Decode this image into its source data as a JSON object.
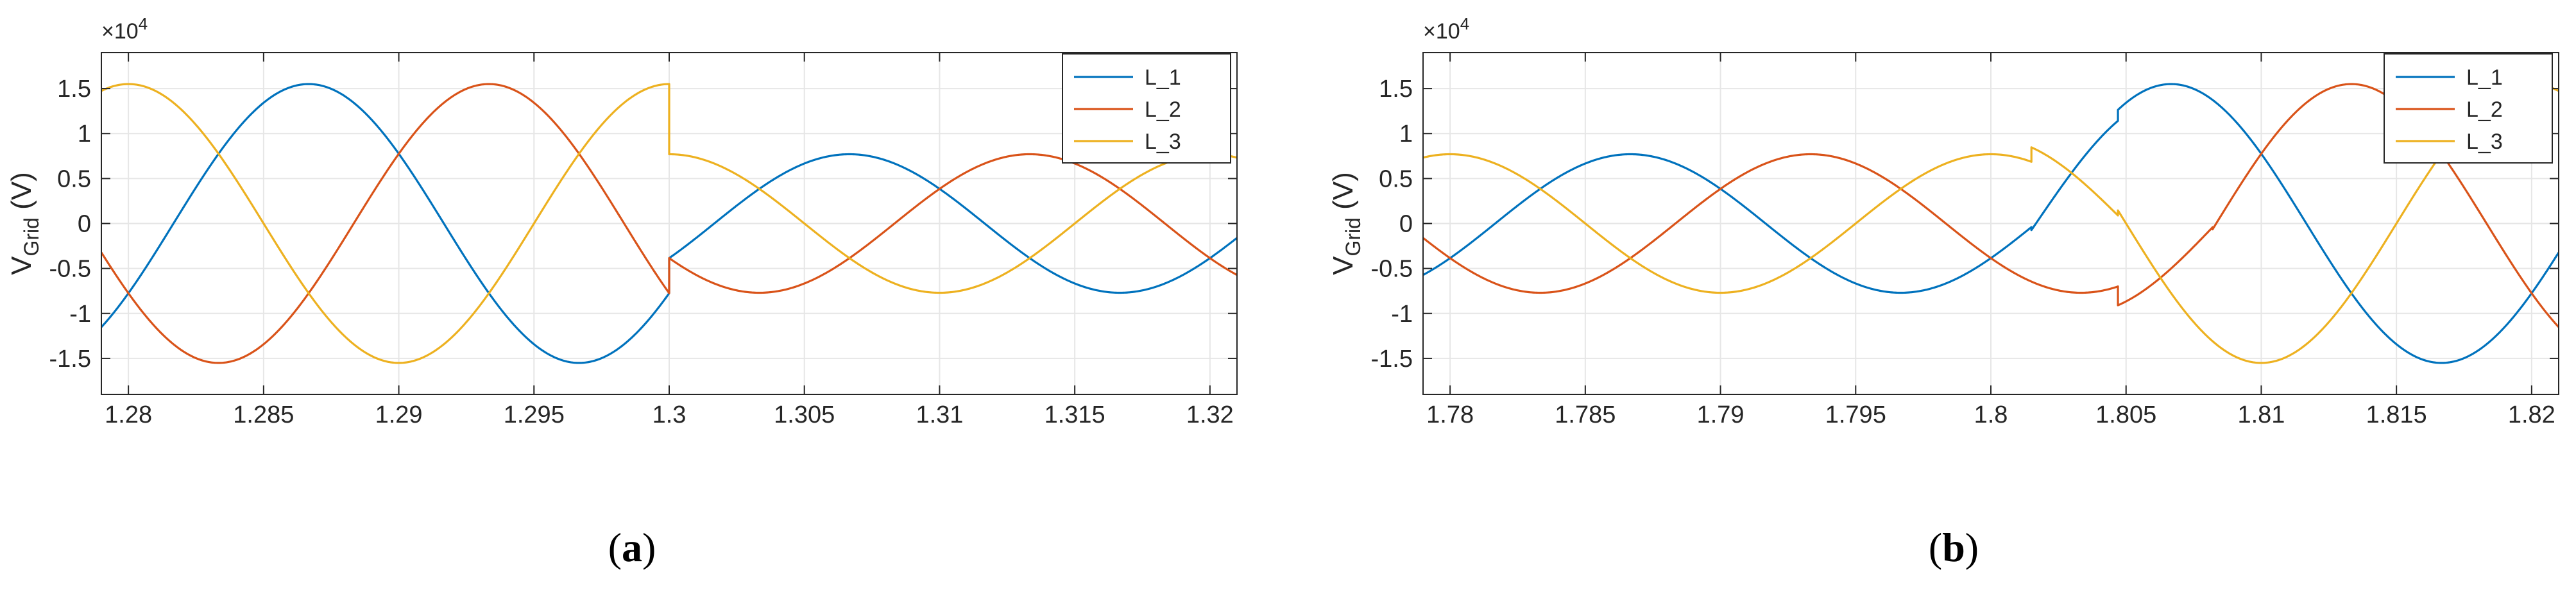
{
  "chart_data": [
    {
      "type": "line",
      "subfigure_label": "a",
      "ylabel": "V",
      "ylabel_sub": "Grid",
      "ylabel_unit": " (V)",
      "y_exponent_base": "×10",
      "y_exponent_power": "4",
      "xlim": [
        1.279,
        1.321
      ],
      "ylim": [
        -1.9,
        1.9
      ],
      "xticks": [
        1.28,
        1.285,
        1.29,
        1.295,
        1.3,
        1.305,
        1.31,
        1.315,
        1.32
      ],
      "xtick_labels": [
        "1.28",
        "1.285",
        "1.29",
        "1.295",
        "1.3",
        "1.305",
        "1.31",
        "1.315",
        "1.32"
      ],
      "yticks": [
        -1.5,
        -1,
        -0.5,
        0,
        0.5,
        1,
        1.5
      ],
      "ytick_labels": [
        "-1.5",
        "-1",
        "-0.5",
        "0",
        "0.5",
        "1",
        "1.5"
      ],
      "grid": true,
      "legend_position": "top-right",
      "frequency_hz": 50,
      "series": [
        {
          "name": "L_1",
          "color": "#0072BD",
          "segments": [
            {
              "x0": 1.279,
              "x1": 1.3,
              "amplitude": 1.55,
              "phase_deg": -30
            },
            {
              "x0": 1.3,
              "x1": 1.321,
              "amplitude": 0.77,
              "phase_deg": -30
            }
          ]
        },
        {
          "name": "L_2",
          "color": "#D95319",
          "segments": [
            {
              "x0": 1.279,
              "x1": 1.3,
              "amplitude": 1.55,
              "phase_deg": -150
            },
            {
              "x0": 1.3,
              "x1": 1.321,
              "amplitude": 0.77,
              "phase_deg": -150
            }
          ]
        },
        {
          "name": "L_3",
          "color": "#EDB120",
          "segments": [
            {
              "x0": 1.279,
              "x1": 1.3,
              "amplitude": 1.55,
              "phase_deg": 90
            },
            {
              "x0": 1.3,
              "x1": 1.321,
              "amplitude": 0.77,
              "phase_deg": 90
            }
          ]
        }
      ]
    },
    {
      "type": "line",
      "subfigure_label": "b",
      "ylabel": "V",
      "ylabel_sub": "Grid",
      "ylabel_unit": " (V)",
      "y_exponent_base": "×10",
      "y_exponent_power": "4",
      "xlim": [
        1.779,
        1.821
      ],
      "ylim": [
        -1.9,
        1.9
      ],
      "xticks": [
        1.78,
        1.785,
        1.79,
        1.795,
        1.8,
        1.805,
        1.81,
        1.815,
        1.82
      ],
      "xtick_labels": [
        "1.78",
        "1.785",
        "1.79",
        "1.795",
        "1.8",
        "1.805",
        "1.81",
        "1.815",
        "1.82"
      ],
      "yticks": [
        -1.5,
        -1,
        -0.5,
        0,
        0.5,
        1,
        1.5
      ],
      "ytick_labels": [
        "-1.5",
        "-1",
        "-0.5",
        "0",
        "0.5",
        "1",
        "1.5"
      ],
      "grid": true,
      "legend_position": "top-right",
      "frequency_hz": 50,
      "series": [
        {
          "name": "L_1",
          "color": "#0072BD",
          "segments": [
            {
              "x0": 1.779,
              "x1": 1.8015,
              "amplitude": 0.77,
              "phase_deg": -30
            },
            {
              "x0": 1.8015,
              "x1": 1.8047,
              "amplitude": 1.4,
              "phase_deg": -30
            },
            {
              "x0": 1.8047,
              "x1": 1.8082,
              "amplitude": 1.55,
              "phase_deg": -30
            },
            {
              "x0": 1.8082,
              "x1": 1.821,
              "amplitude": 1.55,
              "phase_deg": -30
            }
          ]
        },
        {
          "name": "L_2",
          "color": "#D95319",
          "segments": [
            {
              "x0": 1.779,
              "x1": 1.8015,
              "amplitude": 0.77,
              "phase_deg": -150
            },
            {
              "x0": 1.8015,
              "x1": 1.8047,
              "amplitude": 0.77,
              "phase_deg": -150
            },
            {
              "x0": 1.8047,
              "x1": 1.8082,
              "amplitude": 1.0,
              "phase_deg": -150
            },
            {
              "x0": 1.8082,
              "x1": 1.821,
              "amplitude": 1.55,
              "phase_deg": -150
            }
          ]
        },
        {
          "name": "L_3",
          "color": "#EDB120",
          "segments": [
            {
              "x0": 1.779,
              "x1": 1.8015,
              "amplitude": 0.77,
              "phase_deg": 90
            },
            {
              "x0": 1.8015,
              "x1": 1.8047,
              "amplitude": 0.95,
              "phase_deg": 90
            },
            {
              "x0": 1.8047,
              "x1": 1.8082,
              "amplitude": 1.55,
              "phase_deg": 90
            },
            {
              "x0": 1.8082,
              "x1": 1.821,
              "amplitude": 1.55,
              "phase_deg": 90
            }
          ]
        }
      ]
    }
  ],
  "labels": {
    "a": "a",
    "b": "b",
    "open": "(",
    "close": ")"
  }
}
